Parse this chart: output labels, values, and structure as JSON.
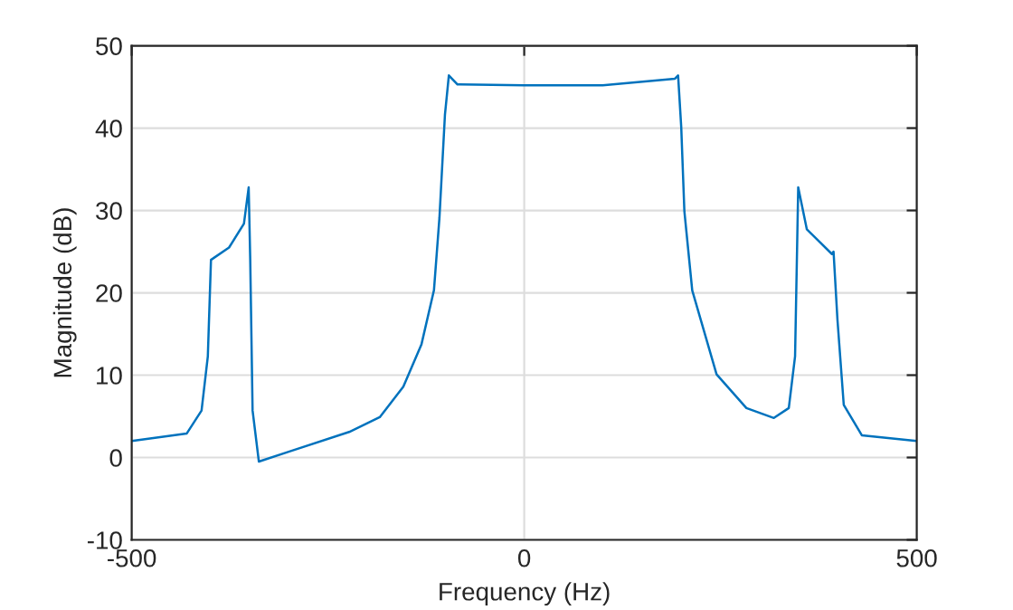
{
  "chart_data": {
    "type": "line",
    "xlabel": "Frequency (Hz)",
    "ylabel": "Magnitude (dB)",
    "xlim": [
      -500,
      500
    ],
    "ylim": [
      -10,
      50
    ],
    "xticks": [
      -500,
      0,
      500
    ],
    "yticks": [
      -10,
      0,
      10,
      20,
      30,
      40,
      50
    ],
    "grid": true,
    "legend": false,
    "marker": "none",
    "line_style": "solid",
    "series": [
      {
        "color": "#0072bd",
        "x": [
          -500,
          -430,
          -411,
          -403,
          -399,
          -376,
          -357,
          -351,
          -349,
          -346,
          -338,
          -300,
          -223,
          -184,
          -154,
          -131,
          -115,
          -108,
          -101,
          -96,
          -85,
          0,
          100,
          192,
          196,
          200,
          204,
          214,
          245,
          283,
          318,
          337,
          345,
          349,
          360,
          392,
          394,
          399,
          407,
          430,
          500
        ],
        "values": [
          2.0,
          2.9,
          5.7,
          12.3,
          24.0,
          25.5,
          28.4,
          32.8,
          24.0,
          5.7,
          -0.5,
          0.7,
          3.1,
          4.9,
          8.6,
          13.7,
          20.3,
          29.1,
          41.6,
          46.4,
          45.3,
          45.2,
          45.2,
          46.0,
          46.4,
          40.1,
          29.9,
          20.3,
          10.1,
          6.0,
          4.8,
          6.0,
          12.3,
          32.8,
          27.7,
          24.7,
          25.0,
          16.7,
          6.4,
          2.7,
          2.0
        ]
      }
    ]
  }
}
